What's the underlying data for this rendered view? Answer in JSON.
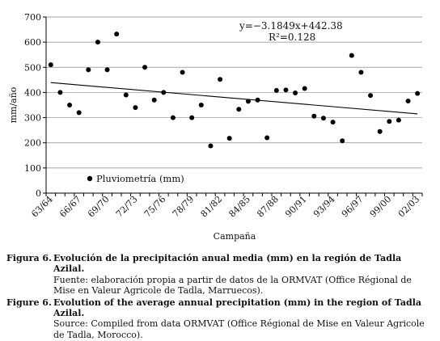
{
  "chart_data": {
    "type": "scatter",
    "x": [
      "63/64",
      "64/65",
      "65/66",
      "66/67",
      "67/68",
      "68/69",
      "69/70",
      "70/71",
      "71/72",
      "72/73",
      "73/74",
      "74/75",
      "75/76",
      "76/77",
      "77/78",
      "78/79",
      "79/80",
      "80/81",
      "81/82",
      "82/83",
      "83/84",
      "84/85",
      "85/86",
      "86/87",
      "87/88",
      "88/89",
      "89/90",
      "90/91",
      "91/92",
      "92/93",
      "93/94",
      "94/95",
      "95/96",
      "96/97",
      "97/98",
      "98/99",
      "99/00",
      "00/01",
      "01/02",
      "02/03"
    ],
    "values": [
      510,
      400,
      350,
      320,
      490,
      600,
      490,
      632,
      390,
      340,
      500,
      370,
      400,
      300,
      480,
      300,
      350,
      188,
      452,
      218,
      333,
      365,
      370,
      220,
      408,
      410,
      398,
      416,
      306,
      298,
      282,
      208,
      547,
      480,
      388,
      245,
      285,
      290,
      366,
      396
    ],
    "xticks": [
      "63/64",
      "66/67",
      "69/70",
      "72/73",
      "75/76",
      "78/79",
      "81/82",
      "84/85",
      "87/88",
      "90/91",
      "93/94",
      "96/97",
      "99/00",
      "02/03"
    ],
    "ylim": [
      0,
      700
    ],
    "yticks": [
      0,
      100,
      200,
      300,
      400,
      500,
      600,
      700
    ],
    "xlabel": "Campaña",
    "ylabel": "mm/año",
    "grid": true,
    "trendline": {
      "slope": -3.1849,
      "intercept": 442.38
    },
    "equation": "y=−3.1849x+442.38",
    "r2": "R²=0.128",
    "legend": {
      "label": "Pluviometría (mm)",
      "position": "bottom-left"
    }
  },
  "captions": [
    {
      "label": "Figura 6.",
      "title": "Evolución de la precipitación anual media (mm) en la región de Tadla Azilal.",
      "source": "Fuente: elaboración propia a partir de datos de la ORMVAT (Office Régional de Mise en Valeur Agricole de Tadla, Marruecos)."
    },
    {
      "label": "Figure 6.",
      "title": "Evolution of the average annual precipitation (mm) in the region of Tadla Azilal.",
      "source": "Source: Compiled from data ORMVAT (Office Régional de Mise en Valeur Agricole de Tadla, Morocco)."
    }
  ]
}
